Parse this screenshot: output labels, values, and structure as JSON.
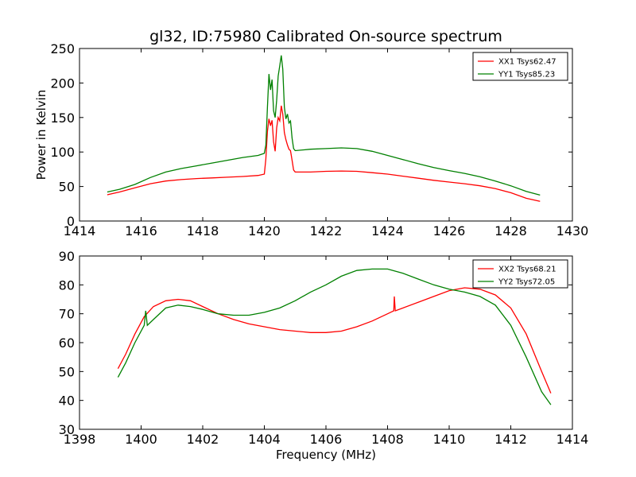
{
  "title": "gl32, ID:75980 Calibrated On-source spectrum",
  "colors": {
    "red": "#ff0000",
    "green": "#008000"
  },
  "chart_data": [
    {
      "type": "line",
      "ylabel": "Power in Kelvin",
      "xlabel": "",
      "xlim": [
        1414,
        1430
      ],
      "ylim": [
        0,
        250
      ],
      "xticks": [
        "1414",
        "1416",
        "1418",
        "1420",
        "1422",
        "1424",
        "1426",
        "1428",
        "1430"
      ],
      "yticks": [
        "0",
        "50",
        "100",
        "150",
        "200",
        "250"
      ],
      "legend_position": "top-right",
      "series": [
        {
          "name": "XX1 Tsys62.47",
          "color": "#ff0000",
          "points": [
            [
              1414.9,
              38
            ],
            [
              1415.3,
              42
            ],
            [
              1415.8,
              48
            ],
            [
              1416.3,
              54
            ],
            [
              1416.8,
              58
            ],
            [
              1417.3,
              60
            ],
            [
              1417.8,
              61.5
            ],
            [
              1418.3,
              62.5
            ],
            [
              1418.8,
              63.5
            ],
            [
              1419.3,
              64.5
            ],
            [
              1419.8,
              66
            ],
            [
              1420.0,
              68
            ],
            [
              1420.05,
              90
            ],
            [
              1420.1,
              130
            ],
            [
              1420.15,
              148
            ],
            [
              1420.2,
              138
            ],
            [
              1420.25,
              146
            ],
            [
              1420.3,
              115
            ],
            [
              1420.35,
              101
            ],
            [
              1420.4,
              135
            ],
            [
              1420.45,
              150
            ],
            [
              1420.5,
              145
            ],
            [
              1420.55,
              167
            ],
            [
              1420.6,
              155
            ],
            [
              1420.65,
              128
            ],
            [
              1420.7,
              118
            ],
            [
              1420.75,
              110
            ],
            [
              1420.8,
              104
            ],
            [
              1420.85,
              102
            ],
            [
              1420.9,
              88
            ],
            [
              1420.95,
              74
            ],
            [
              1421.0,
              71
            ],
            [
              1421.5,
              71
            ],
            [
              1422.0,
              72
            ],
            [
              1422.5,
              72.5
            ],
            [
              1423.0,
              72
            ],
            [
              1423.5,
              70
            ],
            [
              1424.0,
              68
            ],
            [
              1424.5,
              65
            ],
            [
              1425.0,
              62
            ],
            [
              1425.5,
              59
            ],
            [
              1426.0,
              56.5
            ],
            [
              1426.5,
              54
            ],
            [
              1427.0,
              51
            ],
            [
              1427.5,
              47
            ],
            [
              1428.0,
              41
            ],
            [
              1428.5,
              33
            ],
            [
              1428.95,
              28.5
            ]
          ]
        },
        {
          "name": "YY1 Tsys85.23",
          "color": "#008000",
          "points": [
            [
              1414.9,
              42
            ],
            [
              1415.3,
              46
            ],
            [
              1415.8,
              53
            ],
            [
              1416.3,
              63
            ],
            [
              1416.8,
              71
            ],
            [
              1417.3,
              76
            ],
            [
              1417.8,
              80
            ],
            [
              1418.3,
              84
            ],
            [
              1418.8,
              88
            ],
            [
              1419.3,
              92
            ],
            [
              1419.8,
              95
            ],
            [
              1420.0,
              98
            ],
            [
              1420.05,
              110
            ],
            [
              1420.1,
              165
            ],
            [
              1420.15,
              213
            ],
            [
              1420.2,
              190
            ],
            [
              1420.25,
              205
            ],
            [
              1420.3,
              160
            ],
            [
              1420.35,
              150
            ],
            [
              1420.4,
              175
            ],
            [
              1420.45,
              210
            ],
            [
              1420.5,
              225
            ],
            [
              1420.55,
              240
            ],
            [
              1420.6,
              220
            ],
            [
              1420.65,
              165
            ],
            [
              1420.7,
              148
            ],
            [
              1420.75,
              155
            ],
            [
              1420.8,
              142
            ],
            [
              1420.85,
              145
            ],
            [
              1420.9,
              120
            ],
            [
              1420.95,
              105
            ],
            [
              1421.0,
              102
            ],
            [
              1421.5,
              104
            ],
            [
              1422.0,
              105
            ],
            [
              1422.5,
              106
            ],
            [
              1423.0,
              105
            ],
            [
              1423.5,
              101
            ],
            [
              1424.0,
              95
            ],
            [
              1424.5,
              89
            ],
            [
              1425.0,
              83
            ],
            [
              1425.5,
              77.5
            ],
            [
              1426.0,
              73
            ],
            [
              1426.5,
              69
            ],
            [
              1427.0,
              64
            ],
            [
              1427.5,
              58
            ],
            [
              1428.0,
              51
            ],
            [
              1428.5,
              43
            ],
            [
              1428.95,
              37.5
            ]
          ]
        }
      ]
    },
    {
      "type": "line",
      "ylabel": "",
      "xlabel": "Frequency (MHz)",
      "xlim": [
        1398,
        1414
      ],
      "ylim": [
        30,
        90
      ],
      "xticks": [
        "1398",
        "1400",
        "1402",
        "1404",
        "1406",
        "1408",
        "1410",
        "1412",
        "1414"
      ],
      "yticks": [
        "30",
        "40",
        "50",
        "60",
        "70",
        "80",
        "90"
      ],
      "legend_position": "top-right",
      "series": [
        {
          "name": "XX2 Tsys68.21",
          "color": "#ff0000",
          "points": [
            [
              1399.25,
              51
            ],
            [
              1399.5,
              56
            ],
            [
              1399.8,
              63
            ],
            [
              1400.1,
              69
            ],
            [
              1400.4,
              72.5
            ],
            [
              1400.8,
              74.5
            ],
            [
              1401.2,
              75
            ],
            [
              1401.6,
              74.5
            ],
            [
              1402.0,
              72.5
            ],
            [
              1402.5,
              70
            ],
            [
              1403.0,
              68
            ],
            [
              1403.5,
              66.5
            ],
            [
              1404.0,
              65.5
            ],
            [
              1404.5,
              64.5
            ],
            [
              1405.0,
              64
            ],
            [
              1405.5,
              63.5
            ],
            [
              1406.0,
              63.5
            ],
            [
              1406.5,
              64
            ],
            [
              1407.0,
              65.5
            ],
            [
              1407.5,
              67.5
            ],
            [
              1408.0,
              70
            ],
            [
              1408.2,
              71
            ],
            [
              1408.22,
              76
            ],
            [
              1408.25,
              71
            ],
            [
              1408.5,
              72
            ],
            [
              1409.0,
              74
            ],
            [
              1409.5,
              76
            ],
            [
              1410.0,
              78
            ],
            [
              1410.5,
              79
            ],
            [
              1411.0,
              78.5
            ],
            [
              1411.5,
              76.5
            ],
            [
              1412.0,
              72
            ],
            [
              1412.5,
              63
            ],
            [
              1413.0,
              50
            ],
            [
              1413.3,
              42.5
            ]
          ]
        },
        {
          "name": "YY2 Tsys72.05",
          "color": "#008000",
          "points": [
            [
              1399.25,
              48
            ],
            [
              1399.5,
              53
            ],
            [
              1399.8,
              60
            ],
            [
              1400.1,
              66
            ],
            [
              1400.15,
              71
            ],
            [
              1400.2,
              66
            ],
            [
              1400.4,
              68
            ],
            [
              1400.8,
              72
            ],
            [
              1401.2,
              73
            ],
            [
              1401.6,
              72.5
            ],
            [
              1402.0,
              71.5
            ],
            [
              1402.5,
              70
            ],
            [
              1403.0,
              69.5
            ],
            [
              1403.5,
              69.5
            ],
            [
              1404.0,
              70.5
            ],
            [
              1404.5,
              72
            ],
            [
              1405.0,
              74.5
            ],
            [
              1405.5,
              77.5
            ],
            [
              1406.0,
              80
            ],
            [
              1406.5,
              83
            ],
            [
              1407.0,
              85
            ],
            [
              1407.5,
              85.5
            ],
            [
              1408.0,
              85.5
            ],
            [
              1408.5,
              84
            ],
            [
              1409.0,
              82
            ],
            [
              1409.5,
              80
            ],
            [
              1410.0,
              78.5
            ],
            [
              1410.5,
              77.5
            ],
            [
              1411.0,
              76
            ],
            [
              1411.5,
              73
            ],
            [
              1412.0,
              66
            ],
            [
              1412.5,
              55
            ],
            [
              1413.0,
              43
            ],
            [
              1413.3,
              38.5
            ]
          ]
        }
      ]
    }
  ]
}
